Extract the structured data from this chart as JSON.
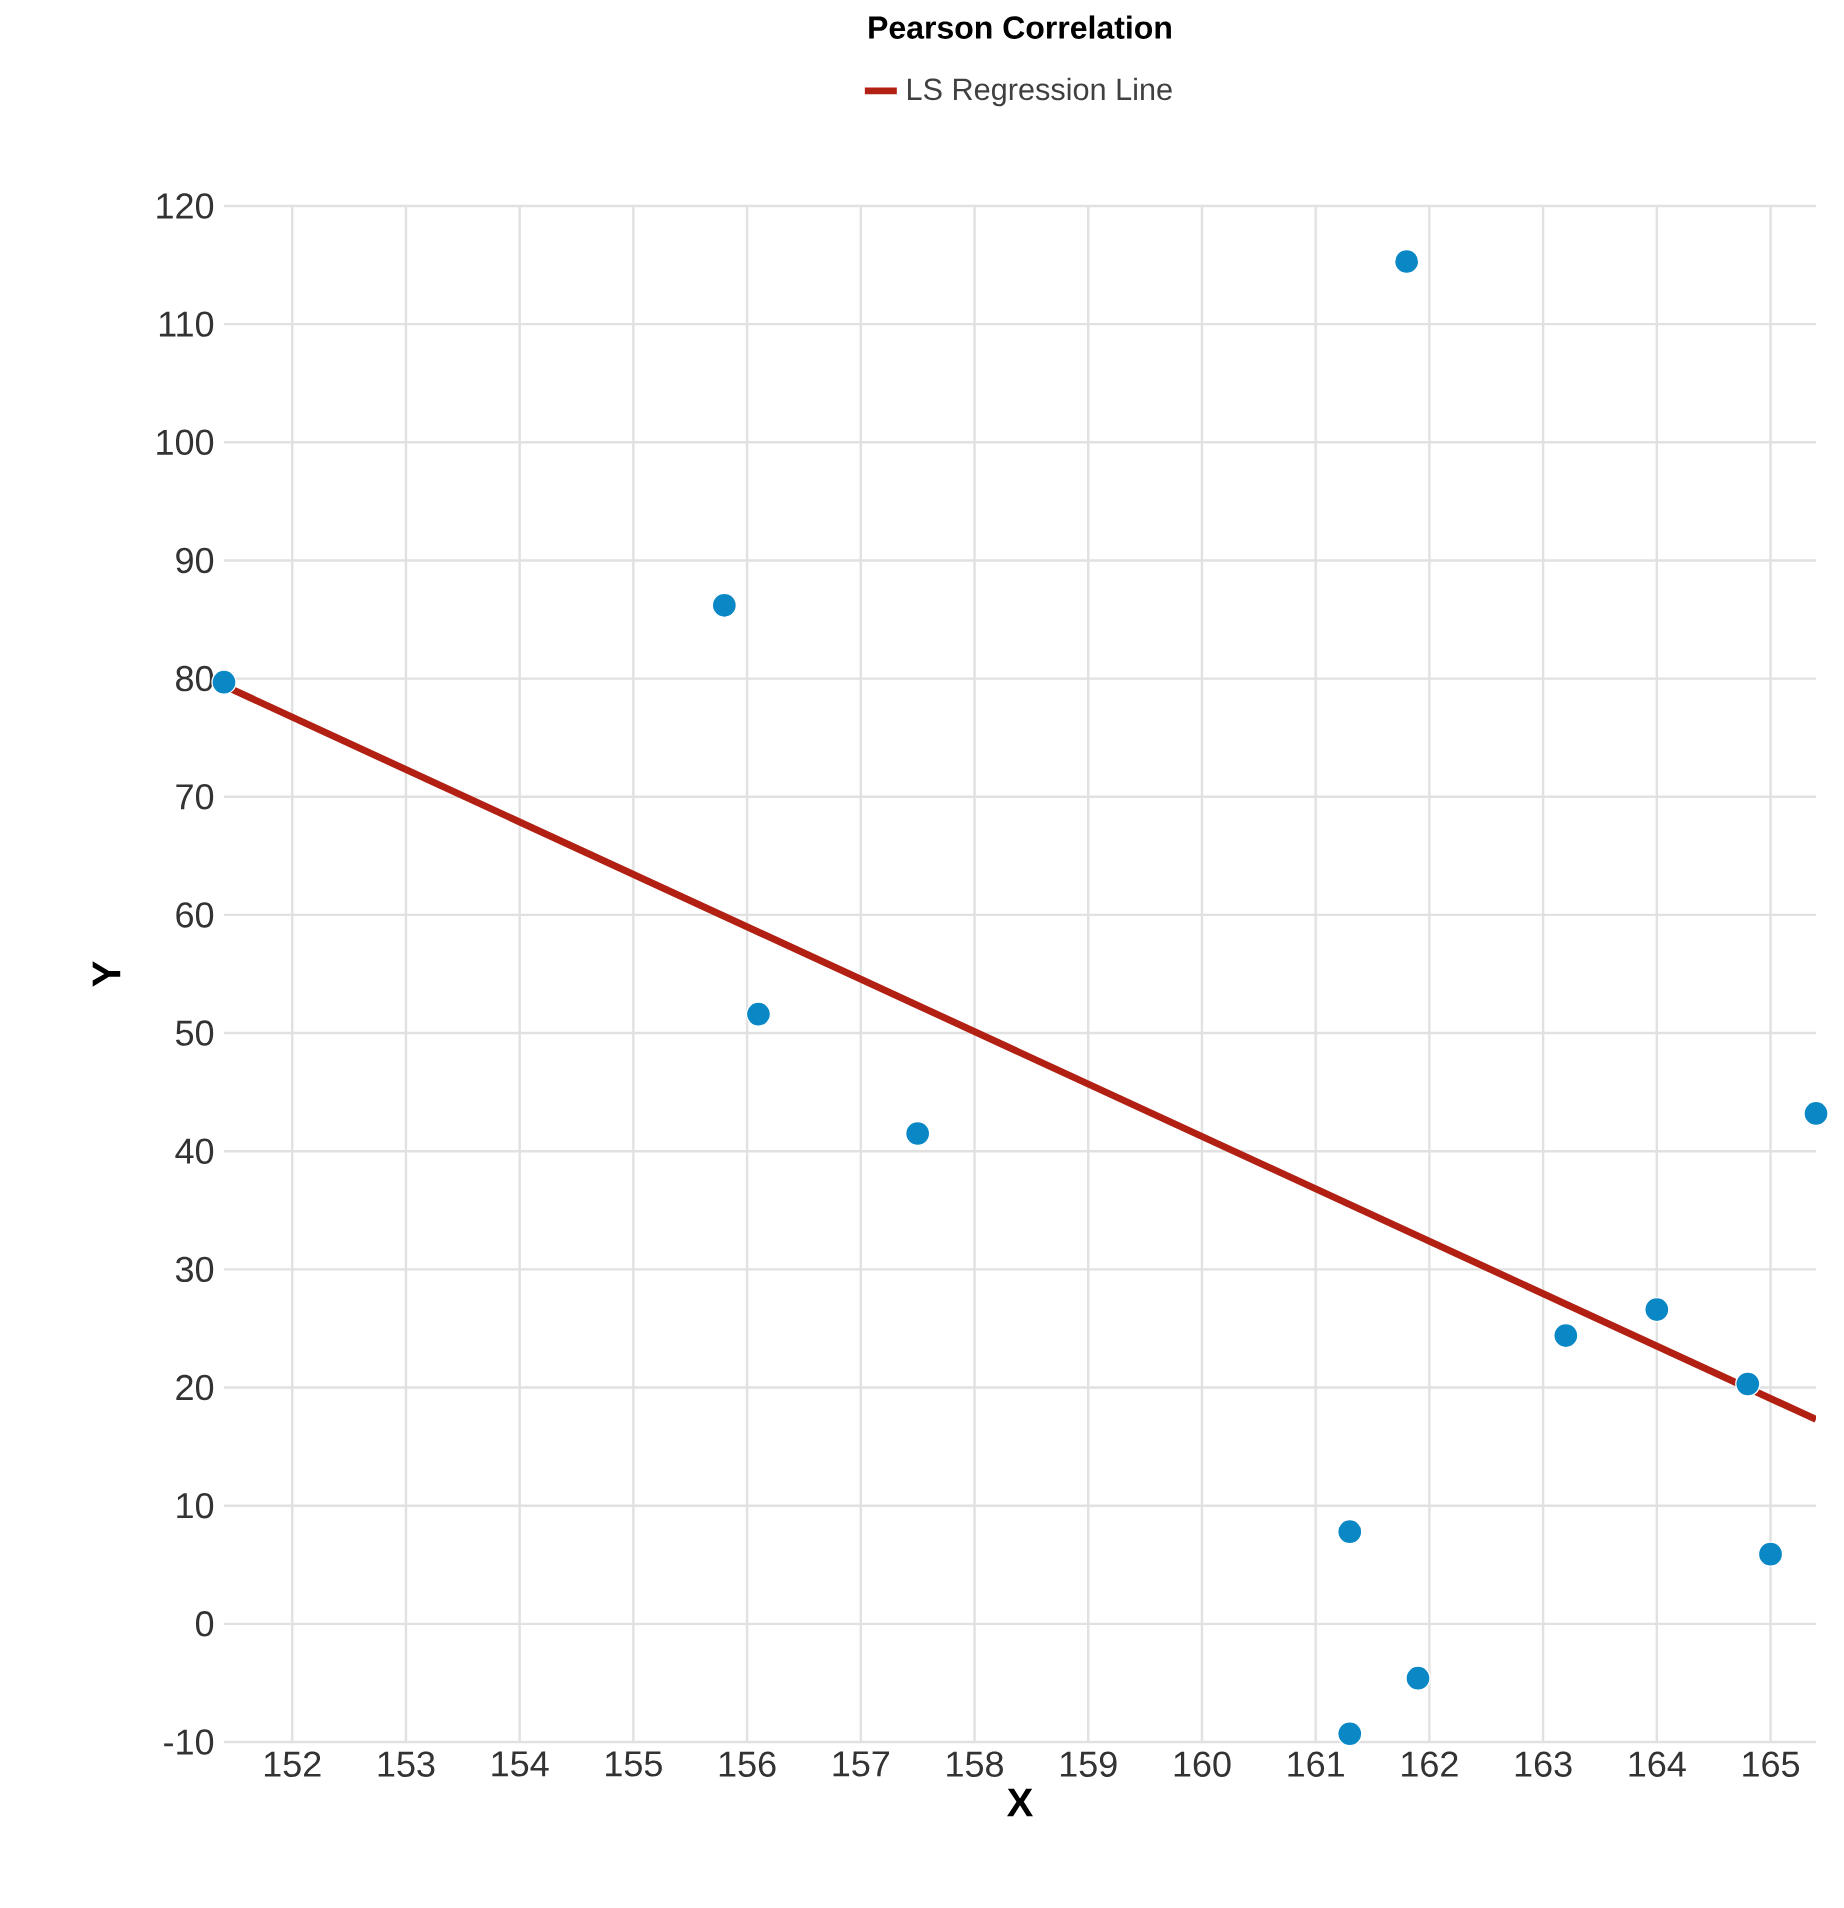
{
  "chart_data": {
    "type": "scatter",
    "title": "Pearson Correlation",
    "xlabel": "X",
    "ylabel": "Y",
    "xlim": [
      151.4,
      165.4
    ],
    "ylim": [
      -10,
      120
    ],
    "xticks": [
      152,
      153,
      154,
      155,
      156,
      157,
      158,
      159,
      160,
      161,
      162,
      163,
      164,
      165
    ],
    "yticks": [
      -10,
      0,
      10,
      20,
      30,
      40,
      50,
      60,
      70,
      80,
      90,
      100,
      110,
      120
    ],
    "grid": true,
    "legend": "top",
    "marker": "circle",
    "series": [
      {
        "color": "#0a87c5",
        "x": [
          151.4,
          155.8,
          156.1,
          157.5,
          161.8,
          161.3,
          161.3,
          161.9,
          163.2,
          164.0,
          164.8,
          165.0,
          165.4
        ],
        "values": [
          79.7,
          86.2,
          51.6,
          41.5,
          115.3,
          7.8,
          -9.3,
          -4.6,
          24.4,
          26.6,
          20.3,
          5.9,
          43.2
        ]
      },
      {
        "type": "line",
        "name": "LS Regression Line",
        "color": "#b22014",
        "marker": "none",
        "x": [
          151.4,
          165.4
        ],
        "values": [
          79.4,
          17.3
        ]
      }
    ]
  }
}
